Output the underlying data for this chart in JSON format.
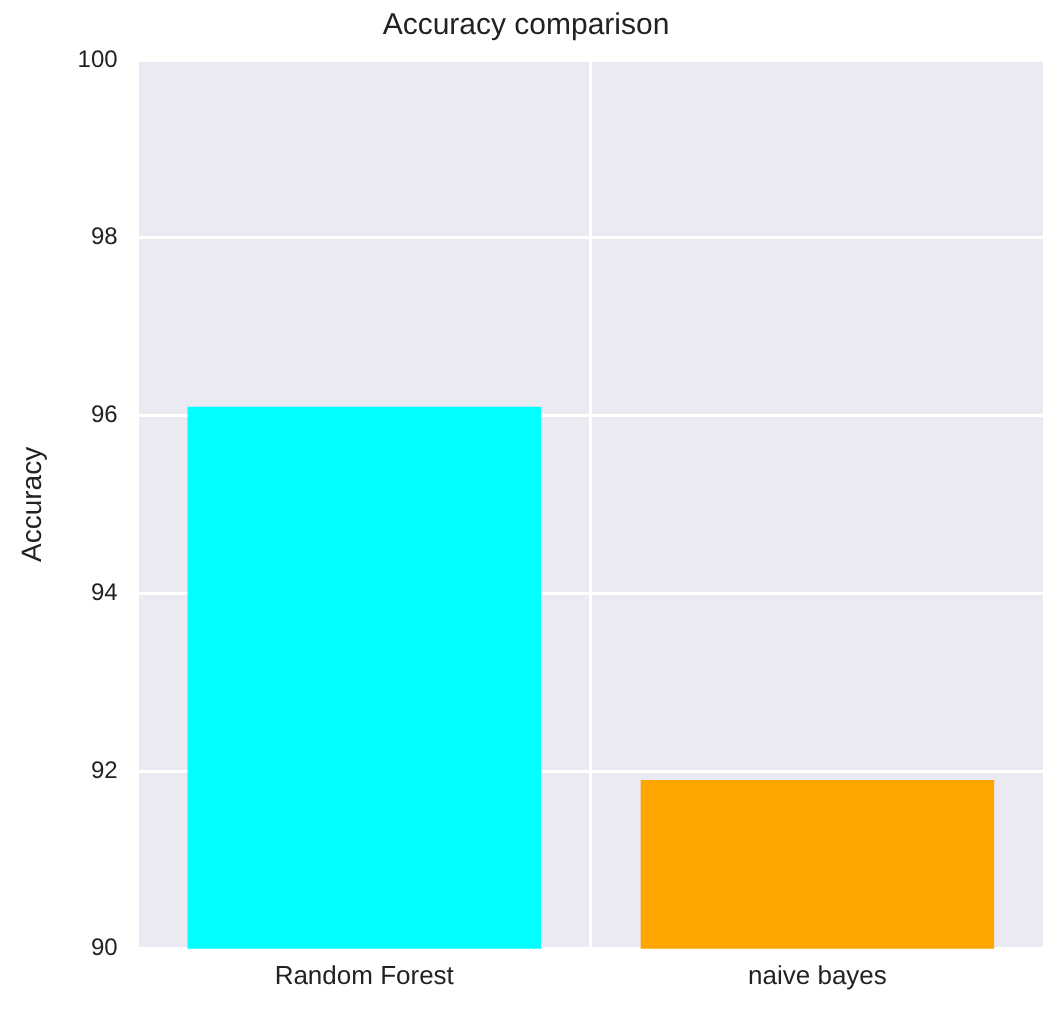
{
  "chart_data": {
    "type": "bar",
    "title": "Accuracy comparison",
    "ylabel": "Accuracy",
    "categories": [
      "Random Forest",
      "naive bayes"
    ],
    "values": [
      96.1,
      91.9
    ],
    "colors": [
      "#00ffff",
      "#ffa500"
    ],
    "ylim": [
      90,
      100
    ],
    "yticks": [
      90,
      92,
      94,
      96,
      98,
      100
    ],
    "grid": true,
    "legend": false
  }
}
